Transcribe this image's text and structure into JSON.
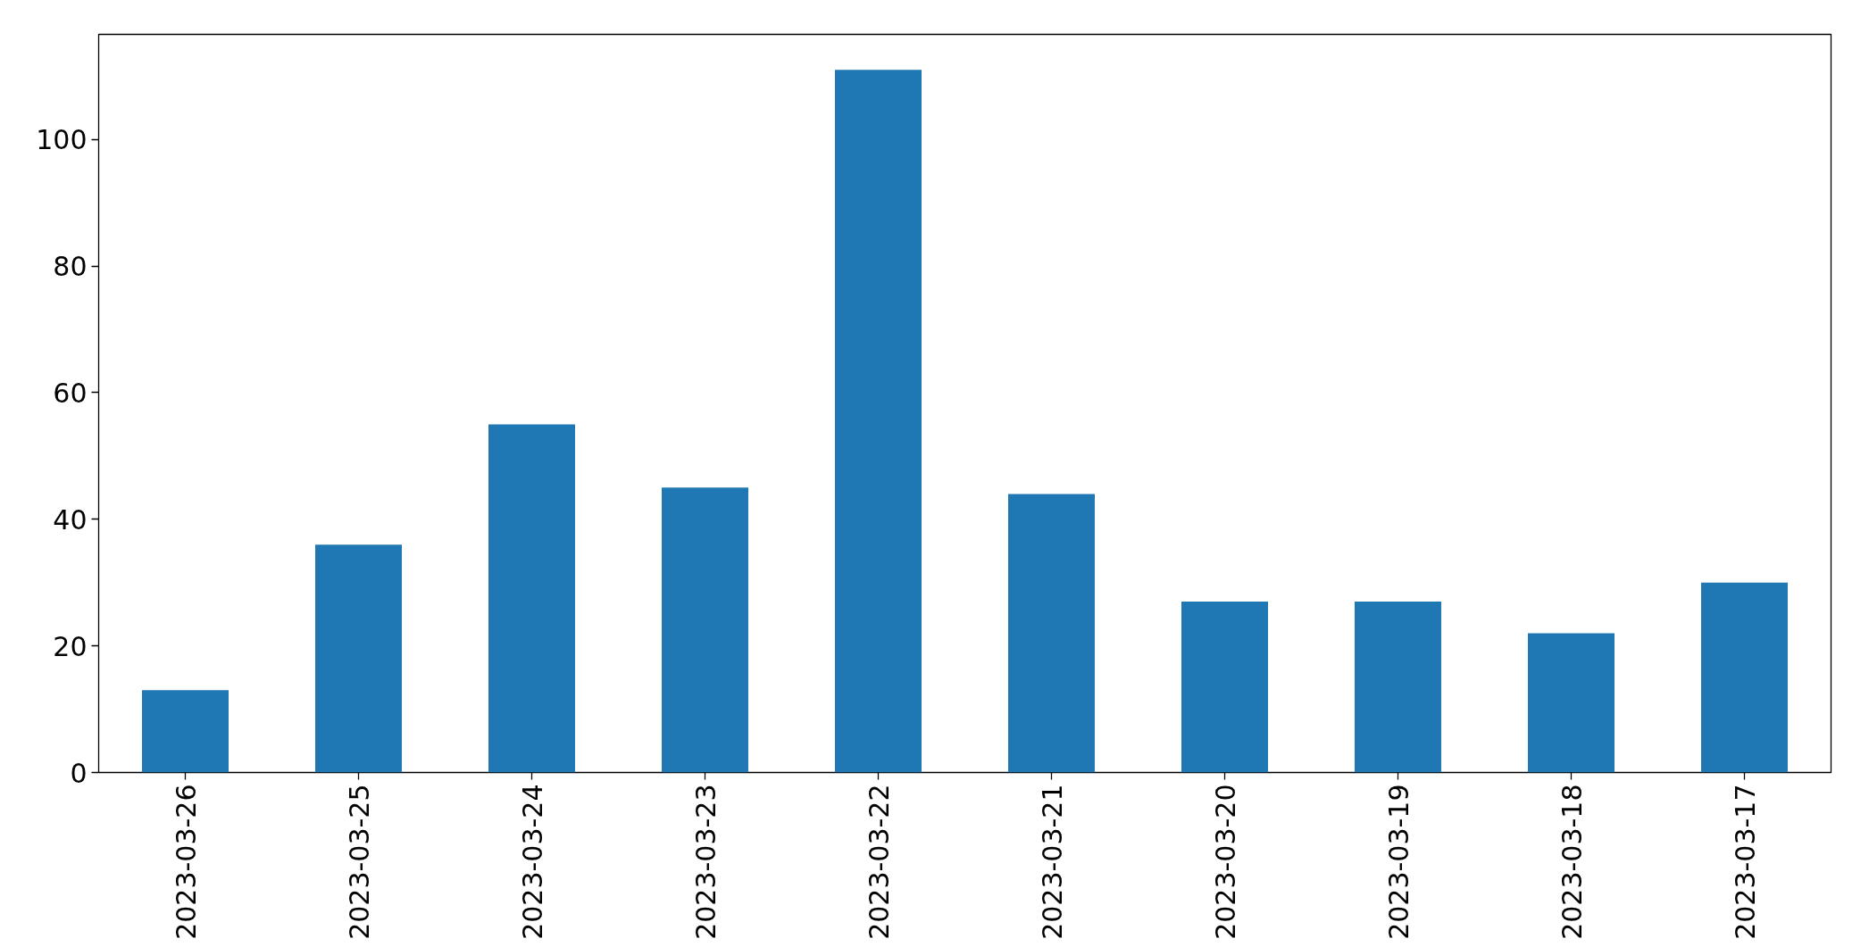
{
  "chart_data": {
    "type": "bar",
    "categories": [
      "2023-03-26",
      "2023-03-25",
      "2023-03-24",
      "2023-03-23",
      "2023-03-22",
      "2023-03-21",
      "2023-03-20",
      "2023-03-19",
      "2023-03-18",
      "2023-03-17"
    ],
    "values": [
      13,
      36,
      55,
      45,
      111,
      44,
      27,
      27,
      22,
      30
    ],
    "color": "#1f77b4",
    "ylim": [
      0,
      116.6
    ],
    "yticks": [
      0,
      20,
      40,
      60,
      80,
      100
    ]
  }
}
